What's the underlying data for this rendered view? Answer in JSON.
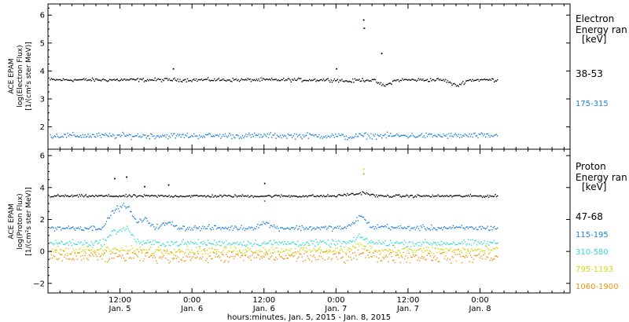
{
  "chart_data": [
    {
      "type": "scatter",
      "title": "",
      "ylabel": [
        "ACE EPAM",
        "log(Electron Flux)",
        "[1/(cm²s ster MeV)]"
      ],
      "ylim": [
        1.2,
        6.4
      ],
      "yticks": [
        2,
        3,
        4,
        5,
        6
      ],
      "legend": {
        "title": [
          "Electron",
          "Energy ran",
          "[keV]"
        ],
        "placement": "right"
      },
      "series": [
        {
          "name": "38-53",
          "color": "#000000",
          "level": 3.7,
          "noise": 0.03,
          "bumps": [
            [
              50,
              3.65
            ],
            [
              56,
              3.5
            ],
            [
              68,
              3.5
            ],
            [
              80,
              3.5
            ]
          ],
          "spikes": [
            [
              20.8,
              4.1
            ],
            [
              48,
              4.1
            ],
            [
              52.5,
              5.85
            ],
            [
              52.6,
              5.55
            ],
            [
              55.5,
              4.65
            ]
          ]
        },
        {
          "name": "175-315",
          "color": "#1a7fdc",
          "level": 1.7,
          "noise": 0.05,
          "bumps": [
            [
              50,
              1.65
            ],
            [
              80,
              1.6
            ]
          ],
          "spikes": [
            [
              52.5,
              5.55
            ]
          ]
        }
      ]
    },
    {
      "type": "scatter",
      "title": "",
      "ylabel": [
        "ACE EPAM",
        "log(Proton Flux)",
        "[1/(cm²s ster MeV)]"
      ],
      "xlabel": "hours:minutes, Jan.  5, 2015 - Jan.  8, 2015",
      "ylim": [
        -2.6,
        6.4
      ],
      "yticks": [
        -2,
        0,
        2,
        4,
        6
      ],
      "legend": {
        "title": [
          "Proton",
          "Energy ran",
          "[keV]"
        ],
        "placement": "right"
      },
      "series": [
        {
          "name": "47-68",
          "color": "#000000",
          "level": 3.5,
          "noise": 0.04,
          "bumps": [
            [
              50,
              3.6
            ],
            [
              52.5,
              3.7
            ]
          ],
          "spikes": [
            [
              11,
              4.6
            ],
            [
              13,
              4.7
            ],
            [
              16,
              4.1
            ],
            [
              20,
              4.2
            ],
            [
              36,
              4.3
            ]
          ]
        },
        {
          "name": "115-195",
          "color": "#1a7fdc",
          "level": 1.5,
          "noise": 0.08,
          "bumps": [
            [
              11,
              2.5
            ],
            [
              13,
              2.8
            ],
            [
              16,
              2.0
            ],
            [
              20,
              1.8
            ],
            [
              36,
              1.8
            ],
            [
              52,
              2.2
            ],
            [
              56,
              1.6
            ],
            [
              77,
              1.8
            ]
          ],
          "spikes": [
            [
              36,
              3.2
            ]
          ]
        },
        {
          "name": "310-580",
          "color": "#33d9d0",
          "level": 0.55,
          "noise": 0.1,
          "bumps": [
            [
              11,
              1.2
            ],
            [
              13,
              1.4
            ],
            [
              52,
              0.9
            ]
          ],
          "spikes": []
        },
        {
          "name": "795-1193",
          "color": "#d6d60e",
          "level": 0.1,
          "noise": 0.12,
          "bumps": [
            [
              52,
              0.4
            ]
          ],
          "spikes": [
            [
              52.5,
              5.2
            ]
          ]
        },
        {
          "name": "1060-1900",
          "color": "#f2920e",
          "level": -0.3,
          "noise": 0.18,
          "bumps": [
            [
              52,
              0.0
            ]
          ],
          "spikes": [
            [
              52.5,
              4.9
            ]
          ]
        }
      ]
    }
  ],
  "xaxis": {
    "xlim_hours": [
      0,
      87
    ],
    "ticks": [
      {
        "hour": 12,
        "time": "12:00",
        "day": "Jan. 5"
      },
      {
        "hour": 24,
        "time": "0:00",
        "day": "Jan. 6"
      },
      {
        "hour": 36,
        "time": "12:00",
        "day": "Jan. 6"
      },
      {
        "hour": 48,
        "time": "0:00",
        "day": "Jan. 7"
      },
      {
        "hour": 60,
        "time": "12:00",
        "day": "Jan. 7"
      },
      {
        "hour": 72,
        "time": "0:00",
        "day": "Jan. 8"
      }
    ],
    "data_end_hour": 75
  }
}
